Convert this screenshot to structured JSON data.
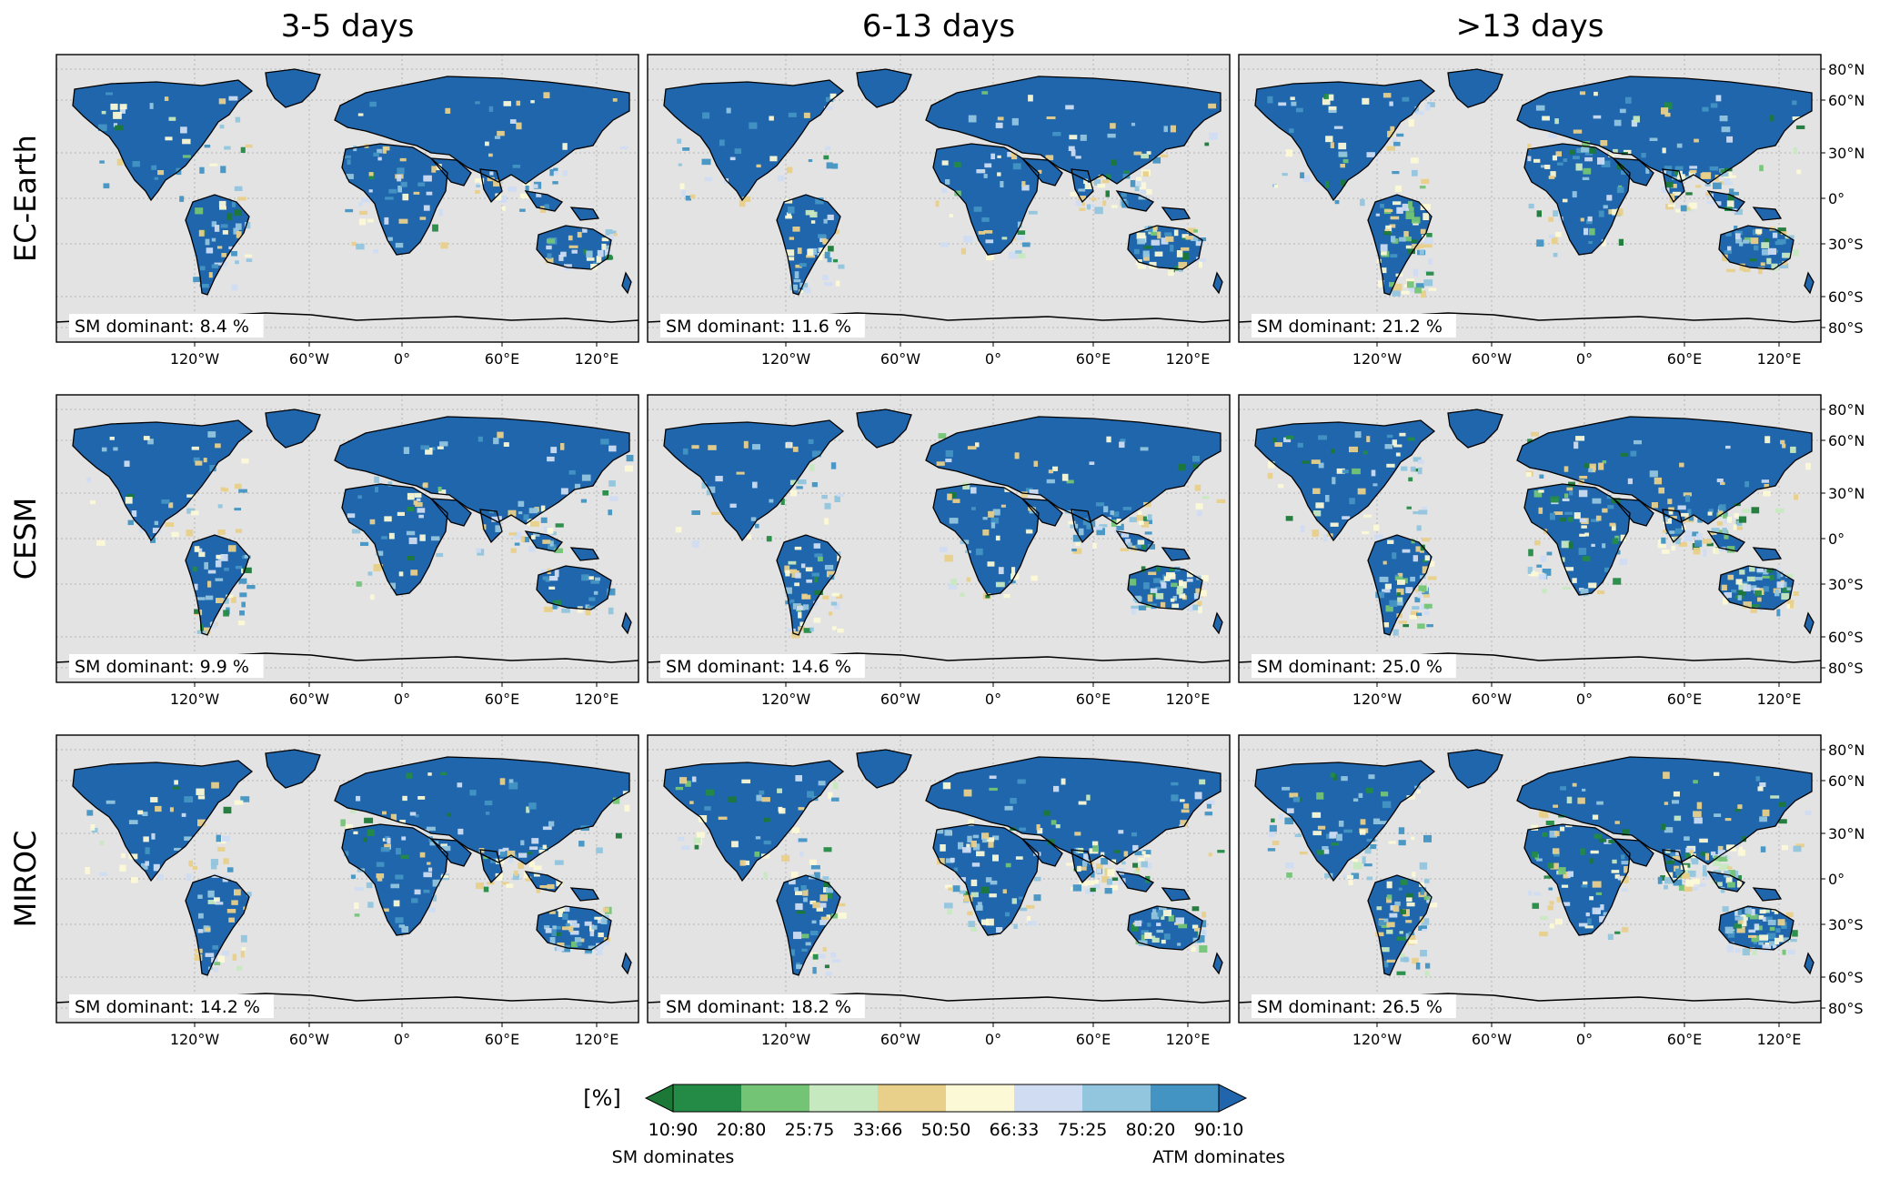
{
  "columns": [
    "3-5 days",
    "6-13 days",
    ">13 days"
  ],
  "rows": [
    "EC-Earth",
    "CESM",
    "MIROC"
  ],
  "lon_ticks": [
    "120°W",
    "60°W",
    "0°",
    "60°E",
    "120°E"
  ],
  "lat_ticks": [
    "80°N",
    "60°N",
    "30°N",
    "0°",
    "30°S",
    "60°S",
    "80°S"
  ],
  "panels": [
    {
      "model": "EC-Earth",
      "period": "3-5 days",
      "label": "SM dominant: 8.4 %",
      "sm_dominant_pct": 8.4
    },
    {
      "model": "EC-Earth",
      "period": "6-13 days",
      "label": "SM dominant: 11.6 %",
      "sm_dominant_pct": 11.6
    },
    {
      "model": "EC-Earth",
      "period": ">13 days",
      "label": "SM dominant: 21.2 %",
      "sm_dominant_pct": 21.2
    },
    {
      "model": "CESM",
      "period": "3-5 days",
      "label": "SM dominant: 9.9 %",
      "sm_dominant_pct": 9.9
    },
    {
      "model": "CESM",
      "period": "6-13 days",
      "label": "SM dominant: 14.6 %",
      "sm_dominant_pct": 14.6
    },
    {
      "model": "CESM",
      "period": ">13 days",
      "label": "SM dominant: 25.0 %",
      "sm_dominant_pct": 25.0
    },
    {
      "model": "MIROC",
      "period": "3-5 days",
      "label": "SM dominant: 14.2 %",
      "sm_dominant_pct": 14.2
    },
    {
      "model": "MIROC",
      "period": "6-13 days",
      "label": "SM dominant: 18.2 %",
      "sm_dominant_pct": 18.2
    },
    {
      "model": "MIROC",
      "period": ">13 days",
      "label": "SM dominant: 26.5 %",
      "sm_dominant_pct": 26.5
    }
  ],
  "colorbar": {
    "unit": "[%]",
    "ticks": [
      "10:90",
      "20:80",
      "25:75",
      "33:66",
      "50:50",
      "66:33",
      "75:25",
      "80:20",
      "90:10"
    ],
    "colors": [
      "#1b7837",
      "#238b45",
      "#74c476",
      "#c7e9c0",
      "#e8d08a",
      "#fbf9d6",
      "#cfdcf2",
      "#92c5de",
      "#4393c3",
      "#2166ac"
    ],
    "left_label": "SM dominates",
    "right_label": "ATM dominates"
  },
  "colors": {
    "ocean": "#e3e3e3",
    "land_dominant": "#1f66ad",
    "frame": "#000000"
  }
}
